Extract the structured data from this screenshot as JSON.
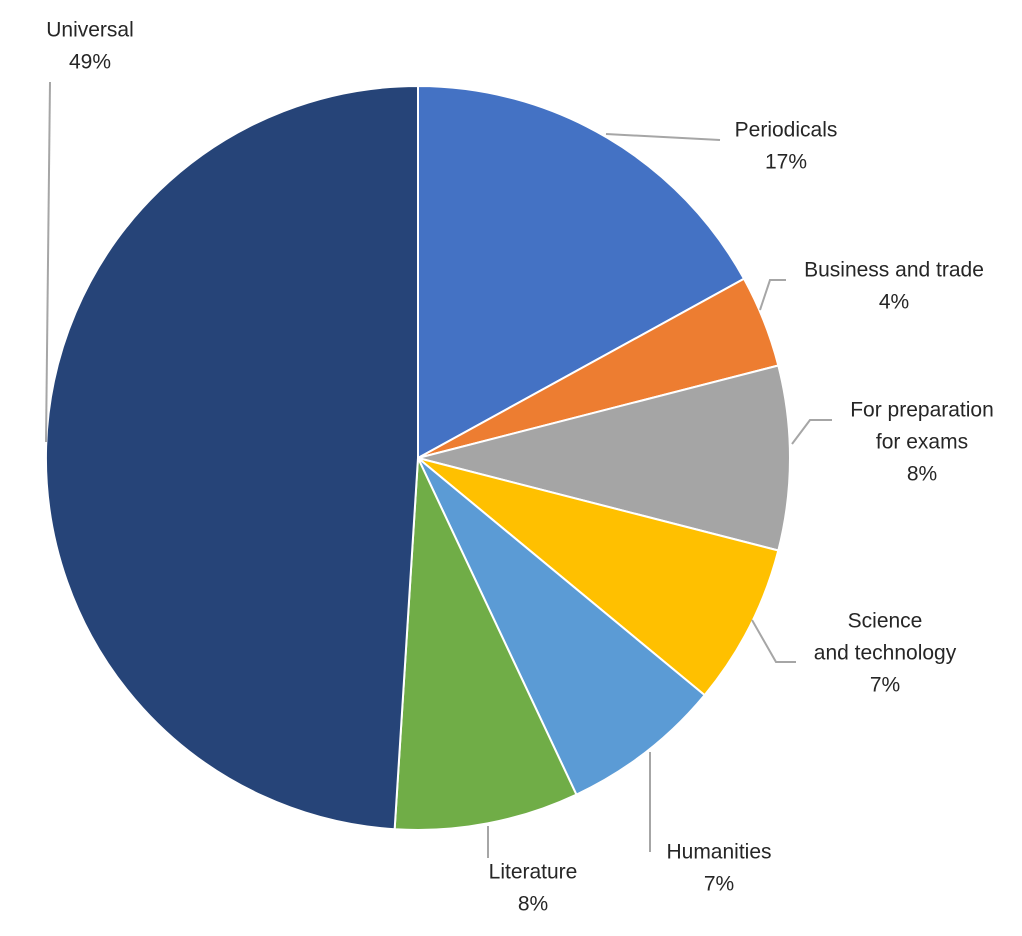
{
  "chart_data": {
    "type": "pie",
    "title": "",
    "legend": "none",
    "slices": [
      {
        "name": "Periodicals",
        "label_lines": [
          "Periodicals"
        ],
        "value": 17,
        "percent_label": "17%",
        "color": "#4472C4"
      },
      {
        "name": "Business and trade",
        "label_lines": [
          "Business and trade"
        ],
        "value": 4,
        "percent_label": "4%",
        "color": "#ED7D31"
      },
      {
        "name": "For preparation for exams",
        "label_lines": [
          "For preparation",
          "for exams"
        ],
        "value": 8,
        "percent_label": "8%",
        "color": "#A5A5A5"
      },
      {
        "name": "Science and technology",
        "label_lines": [
          "Science",
          "and technology"
        ],
        "value": 7,
        "percent_label": "7%",
        "color": "#FFC000"
      },
      {
        "name": "Humanities",
        "label_lines": [
          "Humanities"
        ],
        "value": 7,
        "percent_label": "7%",
        "color": "#5B9BD5"
      },
      {
        "name": "Literature",
        "label_lines": [
          "Literature"
        ],
        "value": 8,
        "percent_label": "8%",
        "color": "#70AD47"
      },
      {
        "name": "Universal",
        "label_lines": [
          "Universal"
        ],
        "value": 49,
        "percent_label": "49%",
        "color": "#264478"
      }
    ]
  }
}
